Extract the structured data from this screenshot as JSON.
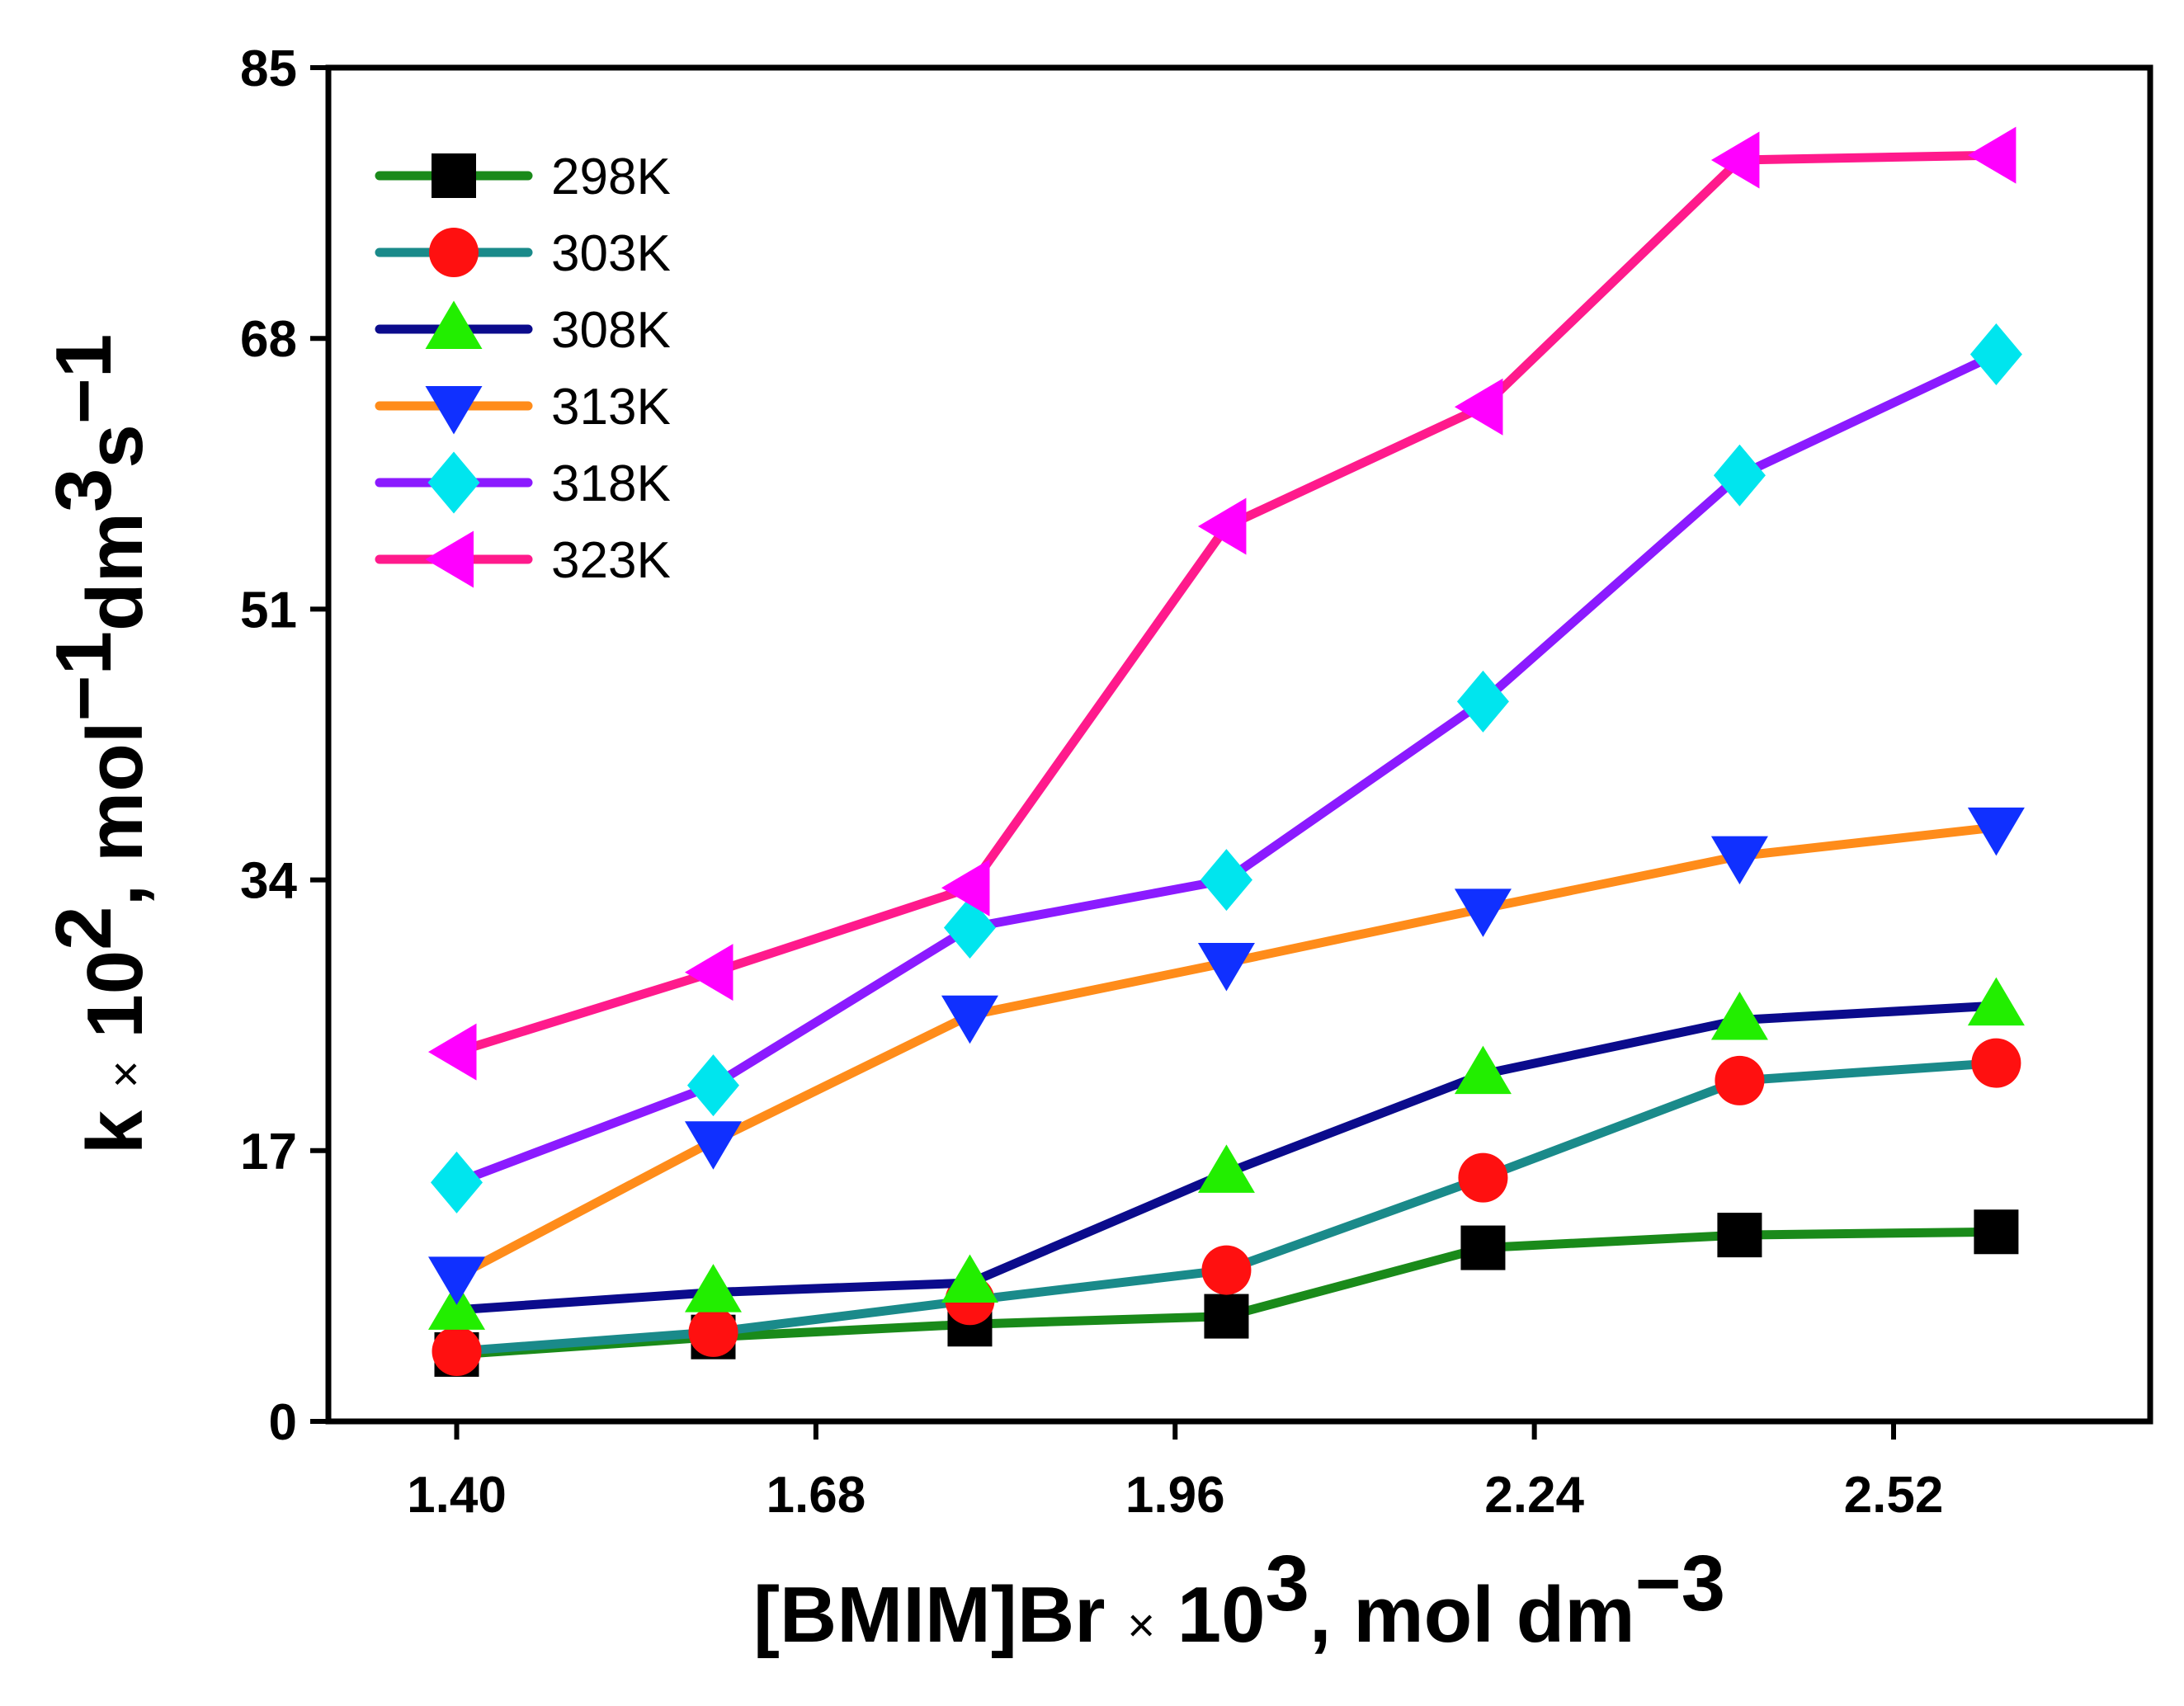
{
  "chart_data": {
    "type": "line",
    "title": "",
    "xlabel": "[BMIM]Br × 10³, mol dm⁻³",
    "ylabel": "k × 10², mol⁻¹dm³s⁻¹",
    "xlabel_parts": [
      "[BMIM]Br ",
      "×",
      " 10",
      "3",
      ", mol dm",
      "−3"
    ],
    "ylabel_parts": [
      "k ",
      "×",
      " 10",
      "2",
      ", mol",
      "−1",
      "dm",
      "3",
      "s",
      "−1"
    ],
    "x": [
      1.4,
      1.6,
      1.8,
      2.0,
      2.2,
      2.4,
      2.6
    ],
    "xlim": [
      1.3,
      2.72
    ],
    "ylim": [
      0,
      85
    ],
    "x_ticks": [
      1.4,
      1.68,
      1.96,
      2.24,
      2.52
    ],
    "x_tick_labels": [
      "1.40",
      "1.68",
      "1.96",
      "2.24",
      "2.52"
    ],
    "y_ticks": [
      0,
      17,
      34,
      51,
      68,
      85
    ],
    "y_tick_labels": [
      "0",
      "17",
      "34",
      "51",
      "68",
      "85"
    ],
    "grid": false,
    "legend_position": "top-left",
    "series": [
      {
        "name": "298K",
        "line_color": "#1a8a1a",
        "marker": "square",
        "marker_color": "#000000",
        "values": [
          4.2,
          5.3,
          6.1,
          6.6,
          10.9,
          11.7,
          11.9
        ]
      },
      {
        "name": "303K",
        "line_color": "#1a8a8a",
        "marker": "circle",
        "marker_color": "#ff1010",
        "values": [
          4.4,
          5.6,
          7.6,
          9.5,
          15.3,
          21.4,
          22.5
        ]
      },
      {
        "name": "308K",
        "line_color": "#0b0b8c",
        "marker": "triangle-up",
        "marker_color": "#22ee00",
        "values": [
          7.0,
          8.1,
          8.7,
          15.6,
          21.8,
          25.2,
          26.1
        ]
      },
      {
        "name": "313K",
        "line_color": "#ff8c1a",
        "marker": "triangle-down",
        "marker_color": "#1030ff",
        "values": [
          9.1,
          17.6,
          25.5,
          28.8,
          32.2,
          35.5,
          37.3
        ]
      },
      {
        "name": "318K",
        "line_color": "#8b1aff",
        "marker": "diamond",
        "marker_color": "#00e5ee",
        "values": [
          15.0,
          21.1,
          31.0,
          34.0,
          45.2,
          59.4,
          67.0
        ]
      },
      {
        "name": "323K",
        "line_color": "#ff1a8c",
        "marker": "triangle-left",
        "marker_color": "#ff00ff",
        "values": [
          23.2,
          28.2,
          33.5,
          56.2,
          63.7,
          79.2,
          79.5
        ]
      }
    ]
  }
}
